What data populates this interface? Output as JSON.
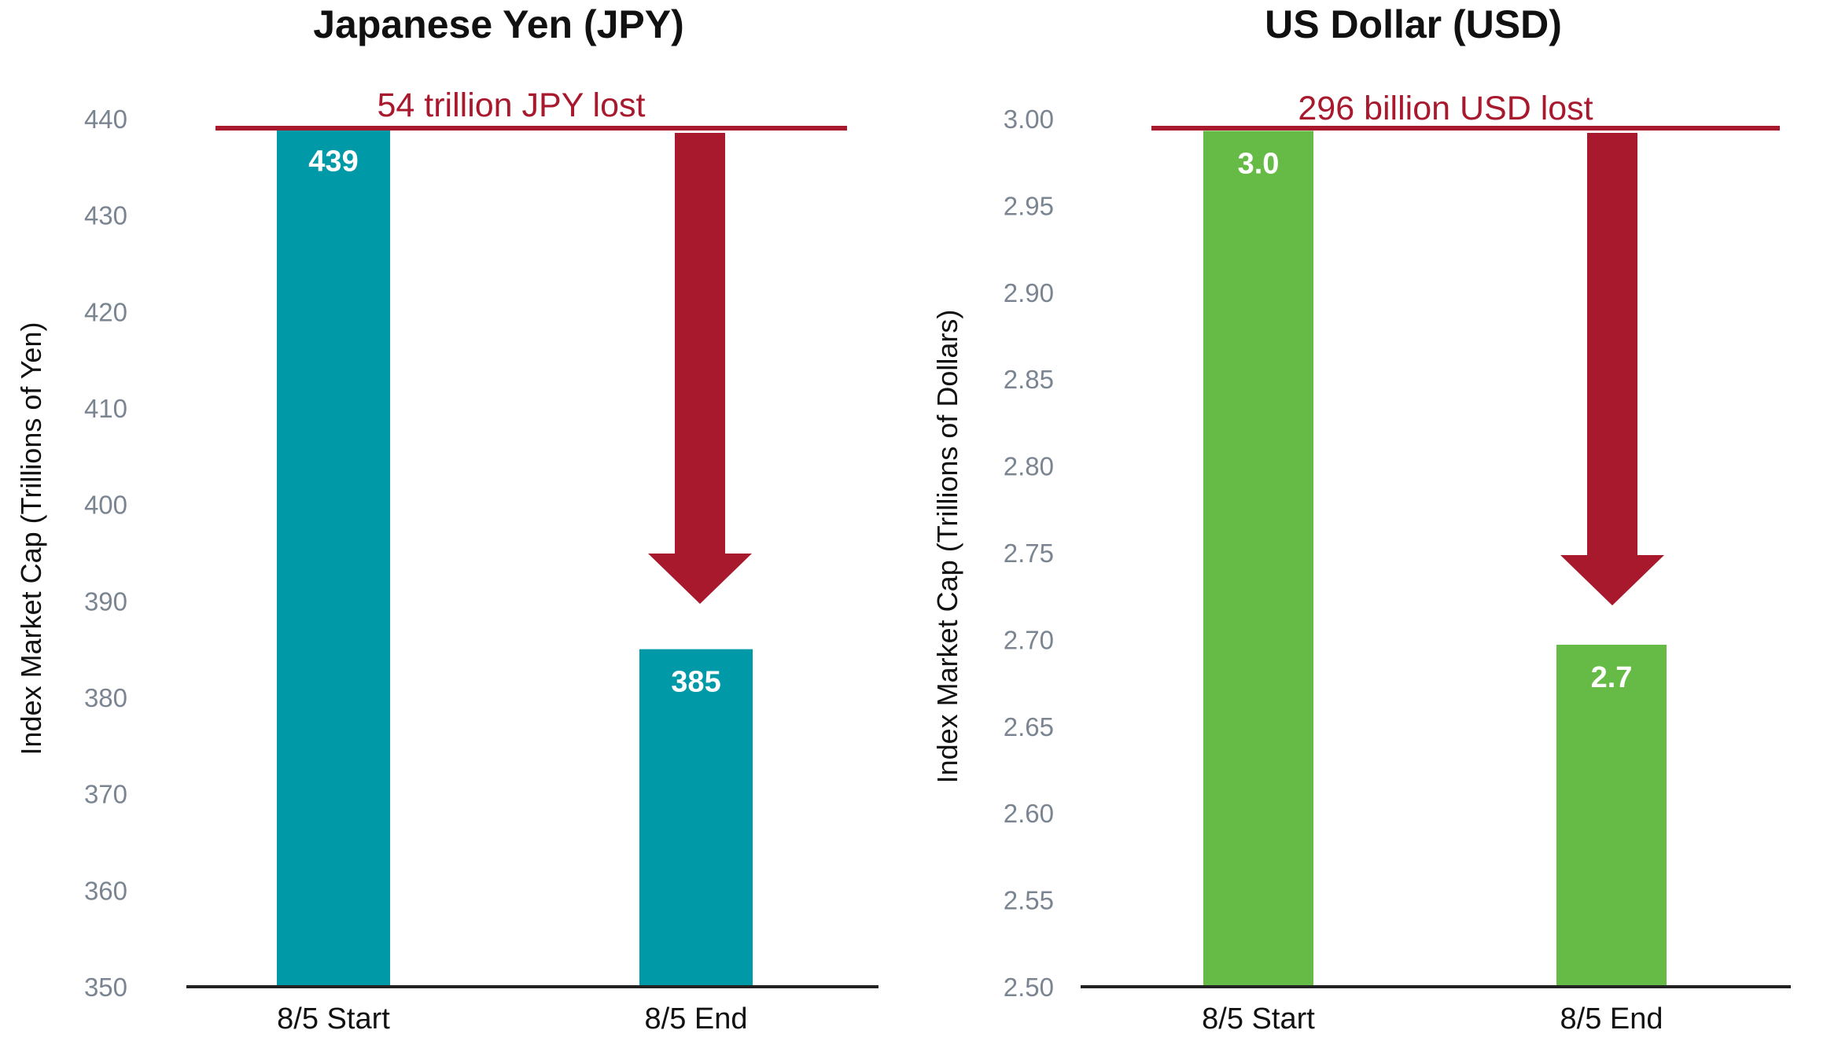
{
  "colors": {
    "jpy_bar": "#0099A8",
    "usd_bar": "#66BB46",
    "loss": "#A8192E",
    "axis": "#222222",
    "tick": "#7A8591"
  },
  "chart_data": [
    {
      "type": "bar",
      "title": "Japanese Yen (JPY)",
      "xlabel": "",
      "ylabel": "Index Market Cap (Trillions of Yen)",
      "categories": [
        "8/5 Start",
        "8/5 End"
      ],
      "values": [
        439,
        385
      ],
      "data_labels": [
        "439",
        "385"
      ],
      "ylim": [
        350,
        440
      ],
      "yticks": [
        350,
        360,
        370,
        380,
        390,
        400,
        410,
        420,
        430,
        440
      ],
      "ytick_labels": [
        "350",
        "360",
        "370",
        "380",
        "390",
        "400",
        "410",
        "420",
        "430",
        "440"
      ],
      "annotation": "54 trillion JPY lost",
      "grid": false,
      "legend": "none"
    },
    {
      "type": "bar",
      "title": "US Dollar (USD)",
      "xlabel": "",
      "ylabel": "Index Market Cap (Trillions of Dollars)",
      "categories": [
        "8/5 Start",
        "8/5 End"
      ],
      "values": [
        2.993,
        2.697
      ],
      "data_labels": [
        "3.0",
        "2.7"
      ],
      "ylim": [
        2.5,
        3.0
      ],
      "yticks": [
        2.5,
        2.55,
        2.6,
        2.65,
        2.7,
        2.75,
        2.8,
        2.85,
        2.9,
        2.95,
        3.0
      ],
      "ytick_labels": [
        "2.50",
        "2.55",
        "2.60",
        "2.65",
        "2.70",
        "2.75",
        "2.80",
        "2.85",
        "2.90",
        "2.95",
        "3.00"
      ],
      "annotation": "296 billion USD lost",
      "grid": false,
      "legend": "none"
    }
  ]
}
